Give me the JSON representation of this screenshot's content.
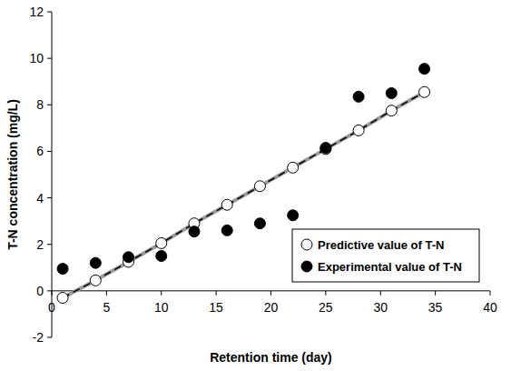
{
  "chart_data": {
    "type": "scatter",
    "x_label": "Retention time (day)",
    "y_label": "T-N concentration (mg/L)",
    "x": [
      1,
      4,
      7,
      10,
      13,
      16,
      19,
      22,
      25,
      28,
      31,
      34
    ],
    "series": [
      {
        "name": "Predictive value of T-N",
        "color": "#000000",
        "marker": "open",
        "line_style": "dashed",
        "values": [
          -0.3,
          0.45,
          1.25,
          2.05,
          2.9,
          3.7,
          4.5,
          5.3,
          6.1,
          6.9,
          7.75,
          8.55
        ]
      },
      {
        "name": "Experimental value of T-N",
        "color": "#000000",
        "marker": "filled",
        "values": [
          0.95,
          1.2,
          1.45,
          1.5,
          2.55,
          2.6,
          2.9,
          3.25,
          6.15,
          8.35,
          8.5,
          9.55
        ]
      }
    ],
    "xlim": [
      0,
      40
    ],
    "xticks": [
      0,
      5,
      10,
      15,
      20,
      25,
      30,
      35,
      40
    ],
    "ylim": [
      -2,
      12
    ],
    "yticks": [
      -2,
      0,
      2,
      4,
      6,
      8,
      10,
      12
    ],
    "grid": false,
    "legend": "lower right"
  }
}
